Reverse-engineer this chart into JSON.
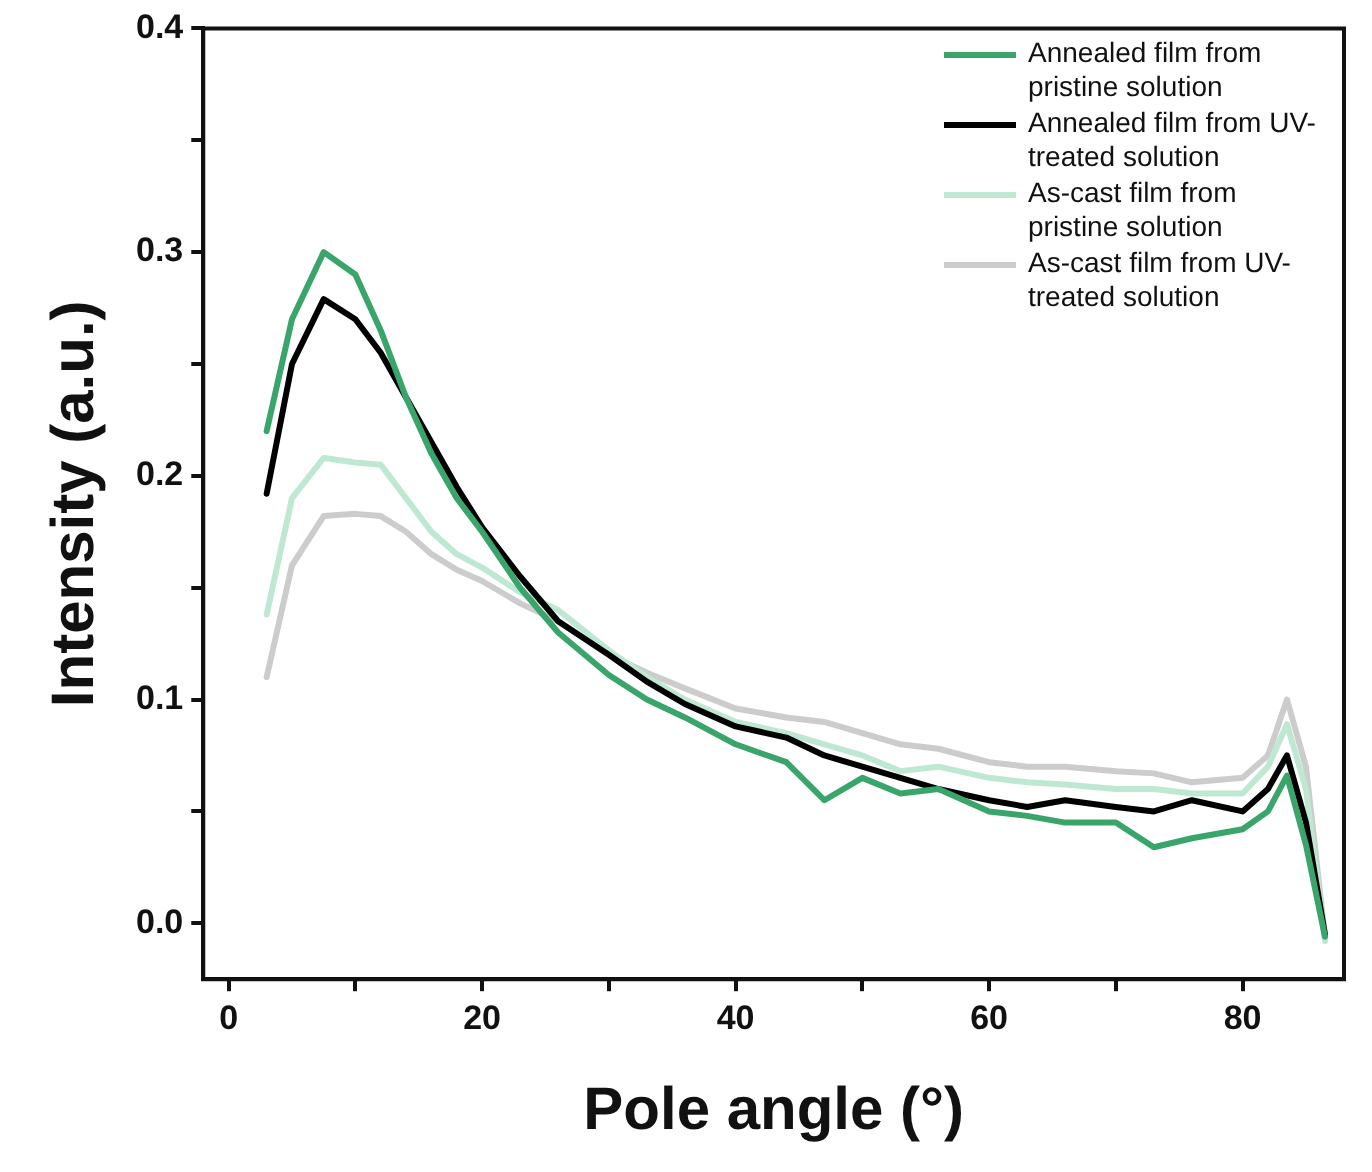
{
  "chart_data": {
    "type": "line",
    "xlabel": "Pole angle (°)",
    "ylabel": "Intensity (a.u.)",
    "xlim": [
      -2,
      88
    ],
    "ylim": [
      -0.025,
      0.4
    ],
    "xticks": [
      0,
      {
        "value": 10,
        "label": null
      },
      20,
      {
        "value": 30,
        "label": null
      },
      40,
      {
        "value": 50,
        "label": null
      },
      60,
      {
        "value": 70,
        "label": null
      },
      80
    ],
    "yticks": [
      {
        "value": 0,
        "label": "0.0"
      },
      {
        "value": 0.05,
        "label": null
      },
      0.1,
      {
        "value": 0.15,
        "label": null
      },
      0.2,
      {
        "value": 0.25,
        "label": null
      },
      0.3,
      {
        "value": 0.35,
        "label": null
      },
      0.4
    ],
    "grid": false,
    "legend": "top right",
    "marker": "none",
    "line_style": "solid",
    "x": [
      3,
      5,
      7.5,
      10,
      12,
      14,
      16,
      18,
      20,
      23,
      26,
      30,
      33,
      36,
      40,
      44,
      47,
      50,
      53,
      56,
      60,
      63,
      66,
      70,
      73,
      76,
      80,
      82,
      83.5,
      85,
      86.5
    ],
    "series": [
      {
        "name": "Annealed film from pristine solution",
        "color": "#3aa56a",
        "values": [
          0.22,
          0.27,
          0.3,
          0.29,
          0.265,
          0.235,
          0.21,
          0.19,
          0.175,
          0.15,
          0.13,
          0.111,
          0.1,
          0.092,
          0.08,
          0.072,
          0.055,
          0.065,
          0.058,
          0.06,
          0.05,
          0.048,
          0.045,
          0.045,
          0.034,
          0.038,
          0.042,
          0.05,
          0.066,
          0.035,
          -0.006
        ]
      },
      {
        "name": "Annealed film from UV-treated solution",
        "color": "#000000",
        "values": [
          0.192,
          0.25,
          0.279,
          0.27,
          0.255,
          0.235,
          0.215,
          0.195,
          0.177,
          0.155,
          0.135,
          0.12,
          0.108,
          0.098,
          0.088,
          0.083,
          0.075,
          0.07,
          0.065,
          0.06,
          0.055,
          0.052,
          0.055,
          0.052,
          0.05,
          0.055,
          0.05,
          0.06,
          0.075,
          0.045,
          -0.005
        ]
      },
      {
        "name": "As-cast film from pristine solution",
        "color": "#bfe8d2",
        "values": [
          0.138,
          0.19,
          0.208,
          0.206,
          0.205,
          0.19,
          0.175,
          0.165,
          0.159,
          0.148,
          0.14,
          0.122,
          0.11,
          0.1,
          0.09,
          0.085,
          0.08,
          0.075,
          0.068,
          0.07,
          0.065,
          0.063,
          0.062,
          0.06,
          0.06,
          0.058,
          0.058,
          0.07,
          0.089,
          0.06,
          -0.008
        ]
      },
      {
        "name": "As-cast film from UV-treated solution",
        "color": "#cccccc",
        "values": [
          0.11,
          0.16,
          0.182,
          0.183,
          0.182,
          0.175,
          0.165,
          0.158,
          0.153,
          0.143,
          0.135,
          0.12,
          0.112,
          0.105,
          0.096,
          0.092,
          0.09,
          0.085,
          0.08,
          0.078,
          0.072,
          0.07,
          0.07,
          0.068,
          0.067,
          0.063,
          0.065,
          0.075,
          0.1,
          0.07,
          -0.006
        ]
      }
    ]
  }
}
